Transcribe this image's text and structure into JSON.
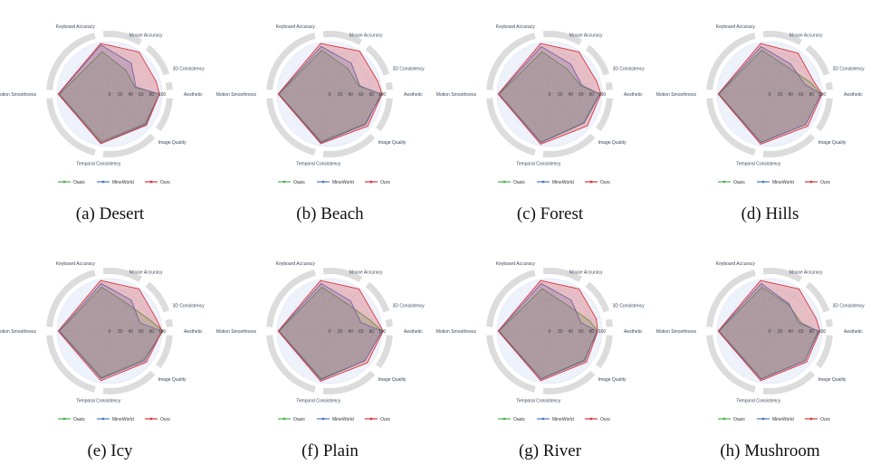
{
  "legend_colors": {
    "Oasis": "#4caf50",
    "MineWorld": "#4a78c2",
    "Ours": "#d9363e"
  },
  "chart_data": [
    {
      "type": "radar",
      "caption": "(a) Desert",
      "axes": [
        "Aesthetic",
        "Image Quality",
        "Temporal Consistency",
        "Motion Smoothness",
        "Keyboard Accuracy",
        "Mouse Accuracy",
        "3D Consistency"
      ],
      "radial_ticks": [
        "0",
        "20",
        "40",
        "60",
        "80",
        "100"
      ],
      "rlim": [
        0,
        100
      ],
      "legend": [
        "Oasis",
        "MineWorld",
        "Ours"
      ],
      "series": [
        {
          "name": "Oasis",
          "values": [
            95,
            88,
            92,
            95,
            82,
            55,
            50
          ]
        },
        {
          "name": "MineWorld",
          "values": [
            95,
            90,
            95,
            97,
            95,
            72,
            52
          ]
        },
        {
          "name": "Ours",
          "values": [
            95,
            92,
            96,
            98,
            98,
            98,
            92
          ]
        }
      ]
    },
    {
      "type": "radar",
      "caption": "(b) Beach",
      "axes": [
        "Aesthetic",
        "Image Quality",
        "Temporal Consistency",
        "Motion Smoothness",
        "Keyboard Accuracy",
        "Mouse Accuracy",
        "3D Consistency"
      ],
      "radial_ticks": [
        "0",
        "20",
        "40",
        "60",
        "80",
        "100"
      ],
      "rlim": [
        0,
        100
      ],
      "legend": [
        "Oasis",
        "MineWorld",
        "Ours"
      ],
      "series": [
        {
          "name": "Oasis",
          "values": [
            100,
            88,
            92,
            96,
            85,
            60,
            58
          ]
        },
        {
          "name": "MineWorld",
          "values": [
            98,
            90,
            94,
            97,
            92,
            72,
            60
          ]
        },
        {
          "name": "Ours",
          "values": [
            100,
            95,
            96,
            98,
            98,
            100,
            95
          ]
        }
      ]
    },
    {
      "type": "radar",
      "caption": "(c) Forest",
      "axes": [
        "Aesthetic",
        "Image Quality",
        "Temporal Consistency",
        "Motion Smoothness",
        "Keyboard Accuracy",
        "Mouse Accuracy",
        "3D Consistency"
      ],
      "radial_ticks": [
        "0",
        "20",
        "40",
        "60",
        "80",
        "100"
      ],
      "rlim": [
        0,
        100
      ],
      "legend": [
        "Oasis",
        "MineWorld",
        "Ours"
      ],
      "series": [
        {
          "name": "Oasis",
          "values": [
            95,
            85,
            93,
            96,
            82,
            58,
            62
          ]
        },
        {
          "name": "MineWorld",
          "values": [
            96,
            86,
            94,
            97,
            92,
            70,
            64
          ]
        },
        {
          "name": "Ours",
          "values": [
            98,
            94,
            97,
            98,
            98,
            98,
            93
          ]
        }
      ]
    },
    {
      "type": "radar",
      "caption": "(d) Hills",
      "axes": [
        "Aesthetic",
        "Image Quality",
        "Temporal Consistency",
        "Motion Smoothness",
        "Keyboard Accuracy",
        "Mouse Accuracy",
        "3D Consistency"
      ],
      "radial_ticks": [
        "0",
        "20",
        "40",
        "60",
        "80",
        "100"
      ],
      "rlim": [
        0,
        100
      ],
      "legend": [
        "Oasis",
        "MineWorld",
        "Ours"
      ],
      "series": [
        {
          "name": "Oasis",
          "values": [
            98,
            90,
            93,
            96,
            85,
            62,
            82
          ]
        },
        {
          "name": "MineWorld",
          "values": [
            98,
            90,
            94,
            97,
            92,
            70,
            70
          ]
        },
        {
          "name": "Ours",
          "values": [
            100,
            95,
            97,
            98,
            98,
            95,
            88
          ]
        }
      ]
    },
    {
      "type": "radar",
      "caption": "(e) Icy",
      "axes": [
        "Aesthetic",
        "Image Quality",
        "Temporal Consistency",
        "Motion Smoothness",
        "Keyboard Accuracy",
        "Mouse Accuracy",
        "3D Consistency"
      ],
      "radial_ticks": [
        "0",
        "20",
        "40",
        "60",
        "80",
        "100"
      ],
      "rlim": [
        0,
        100
      ],
      "legend": [
        "Oasis",
        "MineWorld",
        "Ours"
      ],
      "series": [
        {
          "name": "Oasis",
          "values": [
            102,
            85,
            90,
            95,
            85,
            62,
            80
          ]
        },
        {
          "name": "MineWorld",
          "values": [
            100,
            88,
            92,
            96,
            92,
            72,
            60
          ]
        },
        {
          "name": "Ours",
          "values": [
            100,
            92,
            96,
            98,
            98,
            98,
            92
          ]
        }
      ]
    },
    {
      "type": "radar",
      "caption": "(f) Plain",
      "axes": [
        "Aesthetic",
        "Image Quality",
        "Temporal Consistency",
        "Motion Smoothness",
        "Keyboard Accuracy",
        "Mouse Accuracy",
        "3D Consistency"
      ],
      "radial_ticks": [
        "0",
        "20",
        "40",
        "60",
        "80",
        "100"
      ],
      "rlim": [
        0,
        100
      ],
      "legend": [
        "Oasis",
        "MineWorld",
        "Ours"
      ],
      "series": [
        {
          "name": "Oasis",
          "values": [
            100,
            88,
            92,
            96,
            85,
            62,
            80
          ]
        },
        {
          "name": "MineWorld",
          "values": [
            100,
            88,
            94,
            97,
            92,
            70,
            62
          ]
        },
        {
          "name": "Ours",
          "values": [
            102,
            94,
            97,
            98,
            98,
            98,
            92
          ]
        }
      ]
    },
    {
      "type": "radar",
      "caption": "(g) River",
      "axes": [
        "Aesthetic",
        "Image Quality",
        "Temporal Consistency",
        "Motion Smoothness",
        "Keyboard Accuracy",
        "Mouse Accuracy",
        "3D Consistency"
      ],
      "radial_ticks": [
        "0",
        "20",
        "40",
        "60",
        "80",
        "100"
      ],
      "rlim": [
        0,
        100
      ],
      "legend": [
        "Oasis",
        "MineWorld",
        "Ours"
      ],
      "series": [
        {
          "name": "Oasis",
          "values": [
            92,
            86,
            92,
            96,
            82,
            60,
            78
          ]
        },
        {
          "name": "MineWorld",
          "values": [
            90,
            88,
            93,
            97,
            92,
            72,
            62
          ]
        },
        {
          "name": "Ours",
          "values": [
            92,
            92,
            96,
            98,
            98,
            98,
            92
          ]
        }
      ]
    },
    {
      "type": "radar",
      "caption": "(h) Mushroom",
      "axes": [
        "Aesthetic",
        "Image Quality",
        "Temporal Consistency",
        "Motion Smoothness",
        "Keyboard Accuracy",
        "Mouse Accuracy",
        "3D Consistency"
      ],
      "radial_ticks": [
        "0",
        "20",
        "40",
        "60",
        "80",
        "100"
      ],
      "rlim": [
        0,
        100
      ],
      "legend": [
        "Oasis",
        "MineWorld",
        "Ours"
      ],
      "series": [
        {
          "name": "Oasis",
          "values": [
            92,
            88,
            92,
            96,
            85,
            62,
            62
          ]
        },
        {
          "name": "MineWorld",
          "values": [
            94,
            88,
            93,
            97,
            92,
            64,
            58
          ]
        },
        {
          "name": "Ours",
          "values": [
            96,
            92,
            96,
            98,
            98,
            98,
            92
          ]
        }
      ]
    }
  ]
}
